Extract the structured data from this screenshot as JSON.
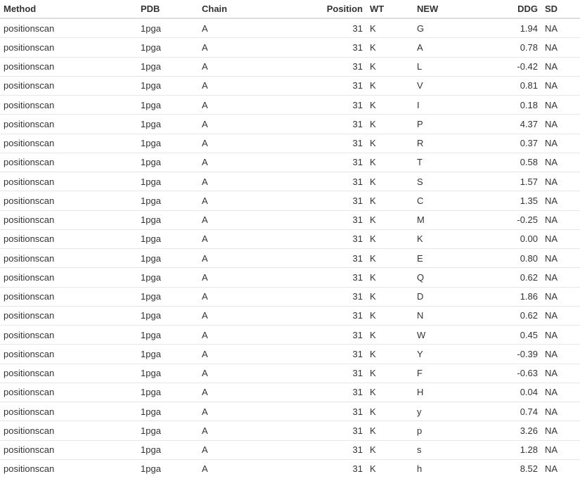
{
  "table": {
    "columns": [
      "Method",
      "PDB",
      "Chain",
      "Position",
      "WT",
      "NEW",
      "DDG",
      "SD"
    ],
    "rows": [
      [
        "positionscan",
        "1pga",
        "A",
        "31",
        "K",
        "G",
        "1.94",
        "NA"
      ],
      [
        "positionscan",
        "1pga",
        "A",
        "31",
        "K",
        "A",
        "0.78",
        "NA"
      ],
      [
        "positionscan",
        "1pga",
        "A",
        "31",
        "K",
        "L",
        "-0.42",
        "NA"
      ],
      [
        "positionscan",
        "1pga",
        "A",
        "31",
        "K",
        "V",
        "0.81",
        "NA"
      ],
      [
        "positionscan",
        "1pga",
        "A",
        "31",
        "K",
        "I",
        "0.18",
        "NA"
      ],
      [
        "positionscan",
        "1pga",
        "A",
        "31",
        "K",
        "P",
        "4.37",
        "NA"
      ],
      [
        "positionscan",
        "1pga",
        "A",
        "31",
        "K",
        "R",
        "0.37",
        "NA"
      ],
      [
        "positionscan",
        "1pga",
        "A",
        "31",
        "K",
        "T",
        "0.58",
        "NA"
      ],
      [
        "positionscan",
        "1pga",
        "A",
        "31",
        "K",
        "S",
        "1.57",
        "NA"
      ],
      [
        "positionscan",
        "1pga",
        "A",
        "31",
        "K",
        "C",
        "1.35",
        "NA"
      ],
      [
        "positionscan",
        "1pga",
        "A",
        "31",
        "K",
        "M",
        "-0.25",
        "NA"
      ],
      [
        "positionscan",
        "1pga",
        "A",
        "31",
        "K",
        "K",
        "0.00",
        "NA"
      ],
      [
        "positionscan",
        "1pga",
        "A",
        "31",
        "K",
        "E",
        "0.80",
        "NA"
      ],
      [
        "positionscan",
        "1pga",
        "A",
        "31",
        "K",
        "Q",
        "0.62",
        "NA"
      ],
      [
        "positionscan",
        "1pga",
        "A",
        "31",
        "K",
        "D",
        "1.86",
        "NA"
      ],
      [
        "positionscan",
        "1pga",
        "A",
        "31",
        "K",
        "N",
        "0.62",
        "NA"
      ],
      [
        "positionscan",
        "1pga",
        "A",
        "31",
        "K",
        "W",
        "0.45",
        "NA"
      ],
      [
        "positionscan",
        "1pga",
        "A",
        "31",
        "K",
        "Y",
        "-0.39",
        "NA"
      ],
      [
        "positionscan",
        "1pga",
        "A",
        "31",
        "K",
        "F",
        "-0.63",
        "NA"
      ],
      [
        "positionscan",
        "1pga",
        "A",
        "31",
        "K",
        "H",
        "0.04",
        "NA"
      ],
      [
        "positionscan",
        "1pga",
        "A",
        "31",
        "K",
        "y",
        "0.74",
        "NA"
      ],
      [
        "positionscan",
        "1pga",
        "A",
        "31",
        "K",
        "p",
        "3.26",
        "NA"
      ],
      [
        "positionscan",
        "1pga",
        "A",
        "31",
        "K",
        "s",
        "1.28",
        "NA"
      ],
      [
        "positionscan",
        "1pga",
        "A",
        "31",
        "K",
        "h",
        "8.52",
        "NA"
      ]
    ]
  }
}
